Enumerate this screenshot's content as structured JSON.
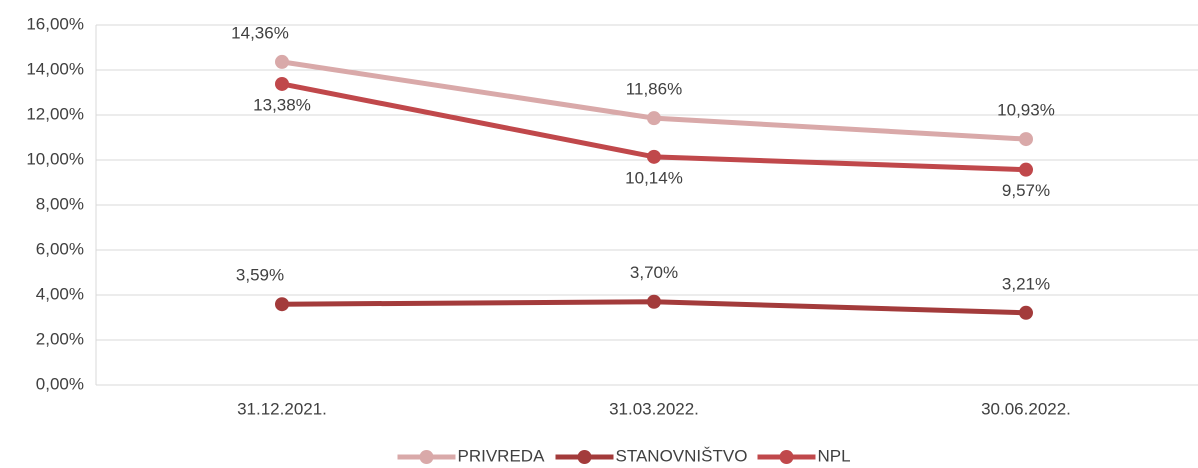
{
  "chart_data": {
    "type": "line",
    "categories": [
      "31.12.2021.",
      "31.03.2022.",
      "30.06.2022."
    ],
    "series": [
      {
        "name": "PRIVREDA",
        "color": "#d9a9a9",
        "values": [
          14.36,
          11.86,
          10.93
        ],
        "value_labels": [
          "14,36%",
          "11,86%",
          "10,93%"
        ]
      },
      {
        "name": "STANOVNIŠTVO",
        "color": "#a33b3b",
        "values": [
          3.59,
          3.7,
          3.21
        ],
        "value_labels": [
          "3,59%",
          "3,70%",
          "3,21%"
        ]
      },
      {
        "name": "NPL",
        "color": "#c0484b",
        "values": [
          13.38,
          10.14,
          9.57
        ],
        "value_labels": [
          "13,38%",
          "10,14%",
          "9,57%"
        ]
      }
    ],
    "ylim": [
      0,
      16
    ],
    "yticks": [
      {
        "value": 0,
        "label": "0,00%"
      },
      {
        "value": 2,
        "label": "2,00%"
      },
      {
        "value": 4,
        "label": "4,00%"
      },
      {
        "value": 6,
        "label": "6,00%"
      },
      {
        "value": 8,
        "label": "8,00%"
      },
      {
        "value": 10,
        "label": "10,00%"
      },
      {
        "value": 12,
        "label": "12,00%"
      },
      {
        "value": 14,
        "label": "14,00%"
      },
      {
        "value": 16,
        "label": "16,00%"
      }
    ],
    "grid": true,
    "legend": "bottom"
  }
}
